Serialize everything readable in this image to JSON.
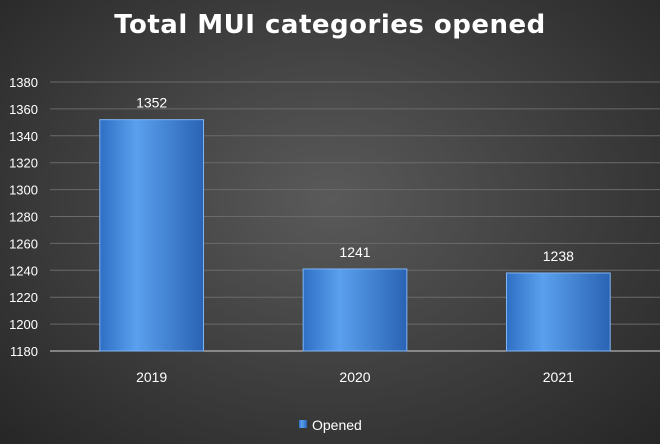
{
  "chart_data": {
    "type": "bar",
    "title": "Total MUI categories opened",
    "categories": [
      "2019",
      "2020",
      "2021"
    ],
    "series": [
      {
        "name": "Opened",
        "values": [
          1352,
          1241,
          1238
        ]
      }
    ],
    "data_labels": [
      "1352",
      "1241",
      "1238"
    ],
    "ylim": [
      1180,
      1380
    ],
    "yticks": [
      1180,
      1200,
      1220,
      1240,
      1260,
      1280,
      1300,
      1320,
      1340,
      1360,
      1380
    ],
    "grid": true,
    "legend": "bottom",
    "colors": {
      "bar": "#4a90e2",
      "bar_dark": "#2a66b8",
      "grid": "#6a6a6a",
      "axis": "#d0d0d0"
    }
  }
}
